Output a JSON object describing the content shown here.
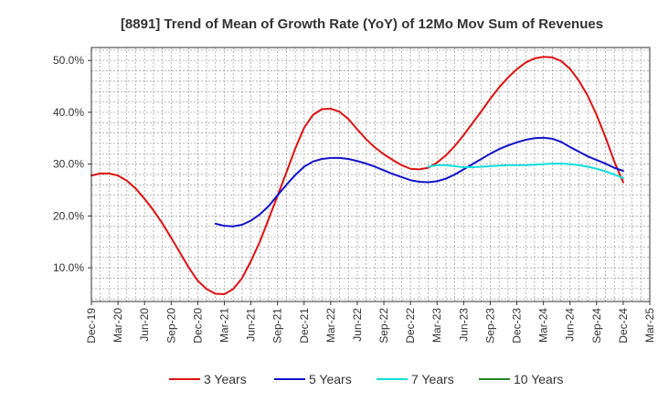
{
  "chart_data": {
    "type": "line",
    "title": "[8891]  Trend of Mean of Growth Rate (YoY) of 12Mo Mov Sum of Revenues",
    "xlabel": "",
    "ylabel": "",
    "ylim": [
      3.5,
      52.5
    ],
    "y_ticks": [
      10,
      20,
      30,
      40,
      50
    ],
    "y_tick_labels": [
      "10.0%",
      "20.0%",
      "30.0%",
      "40.0%",
      "50.0%"
    ],
    "x_tick_labels": [
      "Dec-19",
      "Mar-20",
      "Jun-20",
      "Sep-20",
      "Dec-20",
      "Mar-21",
      "Jun-21",
      "Sep-21",
      "Dec-21",
      "Mar-22",
      "Jun-22",
      "Sep-22",
      "Dec-22",
      "Mar-23",
      "Jun-23",
      "Sep-23",
      "Dec-23",
      "Mar-24",
      "Jun-24",
      "Sep-24",
      "Dec-24",
      "Mar-25"
    ],
    "x_range_months": [
      0,
      63
    ],
    "grid": true,
    "legend_position": "bottom",
    "series": [
      {
        "name": "3 Years",
        "color": "#dd1111",
        "x": [
          0,
          1,
          2,
          3,
          4,
          5,
          6,
          7,
          8,
          9,
          10,
          11,
          12,
          13,
          14,
          15,
          16,
          17,
          18,
          19,
          20,
          21,
          22,
          23,
          24,
          25,
          26,
          27,
          28,
          29,
          30,
          31,
          32,
          33,
          34,
          35,
          36,
          37,
          38,
          39,
          40,
          41,
          42,
          43,
          44,
          45,
          46,
          47,
          48,
          49,
          50,
          51,
          52,
          53,
          54,
          55,
          56,
          57,
          58,
          59,
          60
        ],
        "values": [
          27.8,
          28.2,
          28.2,
          27.8,
          26.8,
          25.3,
          23.3,
          21.1,
          18.6,
          15.8,
          12.9,
          10.0,
          7.5,
          5.9,
          5.0,
          4.9,
          5.9,
          8.0,
          11.3,
          15.0,
          19.4,
          23.9,
          28.4,
          33.0,
          37.0,
          39.5,
          40.6,
          40.7,
          40.1,
          38.7,
          36.7,
          34.8,
          33.2,
          31.9,
          30.8,
          29.8,
          29.1,
          29.0,
          29.3,
          30.3,
          31.7,
          33.5,
          35.6,
          37.9,
          40.2,
          42.6,
          44.8,
          46.7,
          48.3,
          49.6,
          50.4,
          50.7,
          50.6,
          49.9,
          48.4,
          46.1,
          43.2,
          39.5,
          35.2,
          30.5,
          26.5
        ]
      },
      {
        "name": "5 Years",
        "color": "#1111cc",
        "x": [
          14,
          15,
          16,
          17,
          18,
          19,
          20,
          21,
          22,
          23,
          24,
          25,
          26,
          27,
          28,
          29,
          30,
          31,
          32,
          33,
          34,
          35,
          36,
          37,
          38,
          39,
          40,
          41,
          42,
          43,
          44,
          45,
          46,
          47,
          48,
          49,
          50,
          51,
          52,
          53,
          54,
          55,
          56,
          57,
          58,
          59,
          60
        ],
        "values": [
          18.5,
          18.1,
          18.0,
          18.3,
          19.1,
          20.3,
          21.9,
          24.0,
          26.0,
          27.9,
          29.5,
          30.5,
          31.0,
          31.2,
          31.2,
          31.0,
          30.6,
          30.1,
          29.5,
          28.8,
          28.1,
          27.5,
          26.9,
          26.6,
          26.5,
          26.7,
          27.2,
          28.0,
          29.0,
          30.0,
          31.0,
          32.0,
          32.9,
          33.6,
          34.2,
          34.7,
          35.0,
          35.1,
          34.9,
          34.3,
          33.3,
          32.4,
          31.5,
          30.8,
          30.1,
          29.3,
          28.7
        ]
      },
      {
        "name": "7 Years",
        "color": "#11dddd",
        "x": [
          38,
          39,
          40,
          41,
          42,
          43,
          44,
          45,
          46,
          47,
          48,
          49,
          50,
          51,
          52,
          53,
          54,
          55,
          56,
          57,
          58,
          59,
          60
        ],
        "values": [
          29.5,
          29.8,
          29.8,
          29.6,
          29.4,
          29.4,
          29.5,
          29.6,
          29.7,
          29.8,
          29.8,
          29.8,
          29.9,
          30.0,
          30.1,
          30.1,
          30.0,
          29.8,
          29.5,
          29.1,
          28.6,
          28.0,
          27.3
        ]
      },
      {
        "name": "10 Years",
        "color": "#228822",
        "x": [],
        "values": []
      }
    ]
  }
}
